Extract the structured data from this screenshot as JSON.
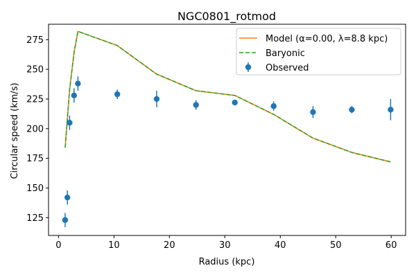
{
  "chart_data": {
    "type": "line",
    "title": "NGC0801_rotmod",
    "xlabel": "Radius (kpc)",
    "ylabel": "Circular speed (km/s)",
    "xlim": [
      -1.8,
      62.6
    ],
    "ylim": [
      110,
      288
    ],
    "xticks": [
      0,
      10,
      20,
      30,
      40,
      50,
      60
    ],
    "yticks": [
      125,
      150,
      175,
      200,
      225,
      250,
      275
    ],
    "grid": false,
    "legend_position": "top-right",
    "colors": {
      "model": "#ff7f0e",
      "baryonic": "#2ca02c",
      "observed": "#1f77b4"
    },
    "series": [
      {
        "name": "Model (α=0.00, λ=8.8 kpc)",
        "style": "solid",
        "x": [
          1.2,
          2.0,
          2.8,
          3.5,
          10.6,
          17.7,
          24.8,
          31.8,
          38.8,
          45.9,
          52.9,
          59.9
        ],
        "y": [
          184,
          233,
          264,
          282,
          270,
          246,
          232,
          228,
          212,
          192,
          180,
          172
        ]
      },
      {
        "name": "Baryonic",
        "style": "dashed",
        "x": [
          1.2,
          2.0,
          2.8,
          3.5,
          10.6,
          17.7,
          24.8,
          31.8,
          38.8,
          45.9,
          52.9,
          59.9
        ],
        "y": [
          184,
          233,
          264,
          282,
          270,
          246,
          232,
          228,
          212,
          192,
          180,
          172
        ]
      },
      {
        "name": "Observed",
        "style": "errorbar",
        "x": [
          1.2,
          1.6,
          2.0,
          2.8,
          3.5,
          10.6,
          17.7,
          24.8,
          31.8,
          38.8,
          45.9,
          52.9,
          59.9
        ],
        "y": [
          123,
          142,
          205,
          228,
          238,
          229,
          225,
          220,
          222,
          219,
          214,
          216,
          216
        ],
        "yerr": [
          6,
          6,
          6,
          6,
          6,
          4,
          7,
          4,
          2,
          4,
          5,
          3,
          9
        ]
      }
    ]
  }
}
